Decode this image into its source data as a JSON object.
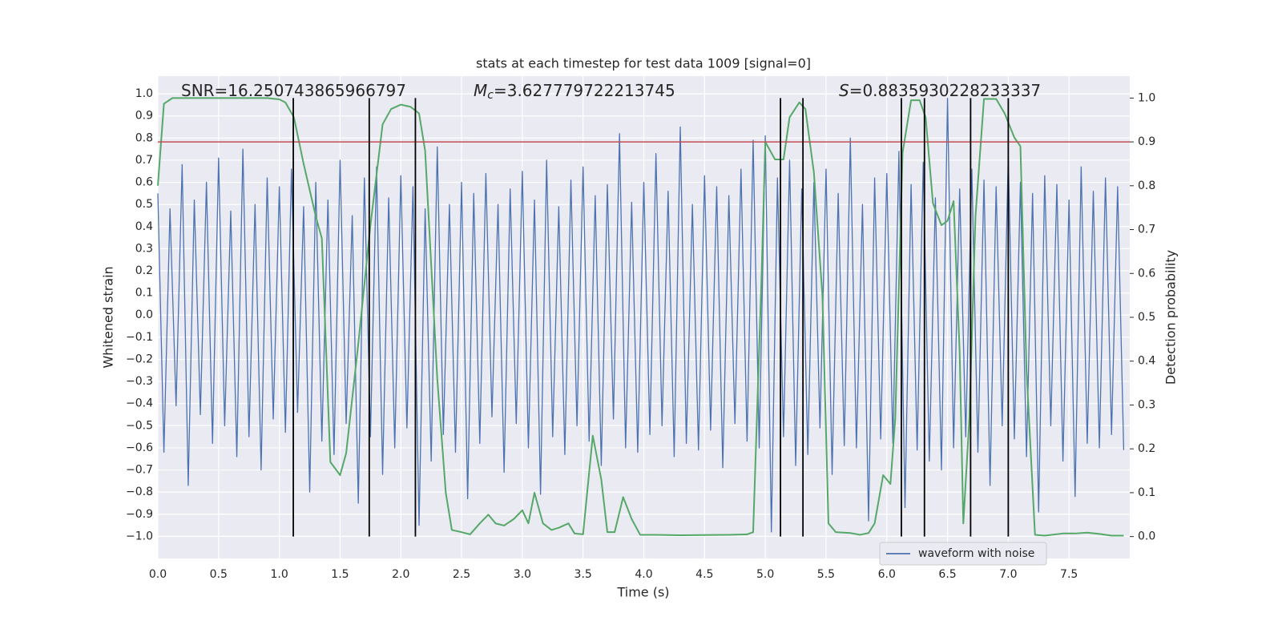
{
  "chart_data": {
    "type": "line",
    "title": "stats at each timestep for test data 1009 [signal=0]",
    "xlabel": "Time (s)",
    "ylabel": "Whitened strain",
    "y2label": "Detection probability",
    "xlim": [
      0,
      8
    ],
    "ylim": [
      -1.1,
      1.08
    ],
    "y2lim": [
      -0.05,
      1.05
    ],
    "xticks": [
      {
        "value": 0,
        "label": "0.0"
      },
      0.5,
      {
        "value": 1,
        "label": "1.0"
      },
      1.5,
      {
        "value": 2,
        "label": "2.0"
      },
      2.5,
      {
        "value": 3,
        "label": "3.0"
      },
      3.5,
      {
        "value": 4,
        "label": "4.0"
      },
      4.5,
      {
        "value": 5,
        "label": "5.0"
      },
      5.5,
      {
        "value": 6,
        "label": "6.0"
      },
      6.5,
      {
        "value": 7,
        "label": "7.0"
      },
      7.5
    ],
    "yticks": [
      {
        "value": -1,
        "label": "−1.0"
      },
      {
        "value": -0.9,
        "label": "−0.9"
      },
      {
        "value": -0.8,
        "label": "−0.8"
      },
      {
        "value": -0.7,
        "label": "−0.7"
      },
      {
        "value": -0.6,
        "label": "−0.6"
      },
      {
        "value": -0.5,
        "label": "−0.5"
      },
      {
        "value": -0.4,
        "label": "−0.4"
      },
      {
        "value": -0.3,
        "label": "−0.3"
      },
      {
        "value": -0.2,
        "label": "−0.2"
      },
      {
        "value": -0.1,
        "label": "−0.1"
      },
      {
        "value": 0,
        "label": "0.0"
      },
      0.1,
      0.2,
      0.3,
      0.4,
      0.5,
      0.6,
      0.7,
      0.8,
      0.9,
      {
        "value": 1,
        "label": "1.0"
      }
    ],
    "y2ticks": [
      {
        "value": 0,
        "label": "0.0"
      },
      0.1,
      0.2,
      0.3,
      0.4,
      0.5,
      0.6,
      0.7,
      0.8,
      0.9,
      {
        "value": 1,
        "label": "1.0"
      }
    ],
    "grid": true,
    "legend": "lower right",
    "annotations": [
      {
        "text": "SNR=16.250743865966797"
      },
      {
        "symbol": "M",
        "subscript": "c",
        "text": "=3.627779722213745"
      },
      {
        "symbol": "S",
        "text": "=0.8835930228233337"
      }
    ],
    "series": [
      {
        "name": "waveform with noise",
        "color": "#4c72b0",
        "x": [
          0,
          0.05,
          0.1,
          0.15,
          0.2,
          0.25,
          0.3,
          0.35,
          0.4,
          0.45,
          0.5,
          0.55,
          0.6,
          0.65,
          0.7,
          0.75,
          0.8,
          0.85,
          0.9,
          0.95,
          1,
          1.05,
          1.1,
          1.15,
          1.2,
          1.25,
          1.3,
          1.35,
          1.4,
          1.45,
          1.5,
          1.55,
          1.6,
          1.65,
          1.7,
          1.75,
          1.8,
          1.85,
          1.9,
          1.95,
          2,
          2.05,
          2.1,
          2.15,
          2.2,
          2.25,
          2.3,
          2.35,
          2.4,
          2.45,
          2.5,
          2.55,
          2.6,
          2.65,
          2.7,
          2.75,
          2.8,
          2.85,
          2.9,
          2.95,
          3,
          3.05,
          3.1,
          3.15,
          3.2,
          3.25,
          3.3,
          3.35,
          3.4,
          3.45,
          3.5,
          3.55,
          3.6,
          3.65,
          3.7,
          3.75,
          3.8,
          3.85,
          3.9,
          3.95,
          4,
          4.05,
          4.1,
          4.15,
          4.2,
          4.25,
          4.3,
          4.35,
          4.4,
          4.45,
          4.5,
          4.55,
          4.6,
          4.65,
          4.7,
          4.75,
          4.8,
          4.85,
          4.9,
          4.95,
          5,
          5.05,
          5.1,
          5.15,
          5.2,
          5.25,
          5.3,
          5.35,
          5.4,
          5.45,
          5.5,
          5.55,
          5.6,
          5.65,
          5.7,
          5.75,
          5.8,
          5.85,
          5.9,
          5.95,
          6,
          6.05,
          6.1,
          6.15,
          6.2,
          6.25,
          6.3,
          6.35,
          6.4,
          6.45,
          6.5,
          6.55,
          6.6,
          6.65,
          6.7,
          6.75,
          6.8,
          6.85,
          6.9,
          6.95,
          7,
          7.05,
          7.1,
          7.15,
          7.2,
          7.25,
          7.3,
          7.35,
          7.4,
          7.45,
          7.5,
          7.55,
          7.6,
          7.65,
          7.7,
          7.75,
          7.8,
          7.85,
          7.9,
          7.95
        ],
        "values": [
          0.55,
          -0.62,
          0.48,
          -0.41,
          0.68,
          -0.77,
          0.52,
          -0.45,
          0.6,
          -0.58,
          0.71,
          -0.5,
          0.47,
          -0.64,
          0.75,
          -0.55,
          0.5,
          -0.7,
          0.62,
          -0.47,
          0.58,
          -0.53,
          0.66,
          -0.44,
          0.49,
          -0.8,
          0.6,
          -0.57,
          0.52,
          -0.63,
          0.7,
          -0.49,
          0.45,
          -0.85,
          0.62,
          -0.55,
          0.67,
          -0.72,
          0.53,
          -0.6,
          0.63,
          -0.51,
          0.58,
          -0.95,
          0.48,
          -0.66,
          0.76,
          -0.54,
          0.5,
          -0.62,
          0.6,
          -0.83,
          0.55,
          -0.58,
          0.64,
          -0.46,
          0.5,
          -0.71,
          0.57,
          -0.49,
          0.65,
          -0.6,
          0.52,
          -0.81,
          0.7,
          -0.55,
          0.49,
          -0.63,
          0.61,
          -0.5,
          0.67,
          -0.57,
          0.54,
          -0.68,
          0.59,
          -0.47,
          0.82,
          -0.6,
          0.51,
          -0.62,
          0.6,
          -0.54,
          0.73,
          -0.5,
          0.56,
          -0.64,
          0.85,
          -0.58,
          0.5,
          -0.61,
          0.63,
          -0.52,
          0.58,
          -0.69,
          0.54,
          -0.49,
          0.66,
          -0.57,
          0.79,
          -0.6,
          0.81,
          -0.98,
          0.62,
          -0.55,
          0.7,
          -0.68,
          0.57,
          -0.63,
          0.6,
          -0.51,
          0.66,
          -0.72,
          0.55,
          -0.59,
          0.8,
          -0.6,
          0.5,
          -0.93,
          0.62,
          -0.56,
          0.64,
          -0.58,
          0.74,
          -0.87,
          0.59,
          -0.61,
          0.69,
          -0.66,
          0.53,
          -0.7,
          0.98,
          -0.6,
          0.57,
          -0.55,
          0.66,
          -0.62,
          0.61,
          -0.77,
          0.58,
          -0.5,
          0.72,
          -0.56,
          0.6,
          -0.64,
          0.55,
          -0.89,
          0.63,
          -0.5,
          0.59,
          -0.66,
          0.52,
          -0.82,
          0.67,
          -0.58,
          0.56,
          -0.6,
          0.62,
          -0.54,
          0.58,
          -0.61
        ]
      },
      {
        "color": "#55a868",
        "axis": "y2",
        "x": [
          0,
          0.05,
          0.12,
          0.2,
          0.5,
          0.9,
          1.0,
          1.05,
          1.12,
          1.2,
          1.3,
          1.35,
          1.42,
          1.5,
          1.55,
          1.65,
          1.75,
          1.85,
          1.92,
          2.0,
          2.08,
          2.15,
          2.2,
          2.3,
          2.37,
          2.42,
          2.5,
          2.57,
          2.65,
          2.72,
          2.78,
          2.85,
          2.93,
          3.0,
          3.05,
          3.1,
          3.17,
          3.24,
          3.3,
          3.38,
          3.43,
          3.5,
          3.58,
          3.65,
          3.7,
          3.76,
          3.83,
          3.9,
          3.97,
          4.1,
          4.3,
          4.7,
          4.85,
          4.9,
          4.97,
          5.0,
          5.08,
          5.15,
          5.2,
          5.28,
          5.33,
          5.4,
          5.47,
          5.52,
          5.58,
          5.7,
          5.78,
          5.85,
          5.9,
          5.97,
          6.03,
          6.07,
          6.13,
          6.2,
          6.27,
          6.32,
          6.38,
          6.45,
          6.5,
          6.55,
          6.6,
          6.63,
          6.68,
          6.73,
          6.8,
          6.9,
          6.97,
          7.05,
          7.1,
          7.15,
          7.22,
          7.3,
          7.45,
          7.55,
          7.65,
          7.75,
          7.85,
          7.95
        ],
        "values": [
          0.8,
          0.987,
          1.0,
          1.0,
          1.0,
          1.0,
          0.997,
          0.99,
          0.956,
          0.85,
          0.73,
          0.68,
          0.17,
          0.14,
          0.19,
          0.44,
          0.71,
          0.94,
          0.975,
          0.985,
          0.98,
          0.965,
          0.88,
          0.36,
          0.1,
          0.015,
          0.01,
          0.005,
          0.03,
          0.05,
          0.03,
          0.025,
          0.04,
          0.06,
          0.03,
          0.1,
          0.03,
          0.015,
          0.02,
          0.03,
          0.007,
          0.005,
          0.23,
          0.13,
          0.01,
          0.01,
          0.09,
          0.04,
          0.004,
          0.004,
          0.003,
          0.004,
          0.005,
          0.01,
          0.6,
          0.9,
          0.86,
          0.86,
          0.956,
          0.99,
          0.975,
          0.83,
          0.55,
          0.03,
          0.01,
          0.008,
          0.004,
          0.008,
          0.03,
          0.14,
          0.12,
          0.27,
          0.875,
          0.995,
          0.995,
          0.956,
          0.76,
          0.71,
          0.72,
          0.765,
          0.42,
          0.03,
          0.27,
          0.73,
          0.998,
          0.998,
          0.965,
          0.91,
          0.89,
          0.38,
          0.004,
          0.002,
          0.007,
          0.007,
          0.009,
          0.006,
          0.002,
          0.002
        ]
      }
    ],
    "hlines": [
      {
        "value": 0.9,
        "axis": "y2",
        "color": "#c44e52"
      }
    ],
    "vlines": {
      "values": [
        1.115,
        1.74,
        2.12,
        5.125,
        5.31,
        6.12,
        6.31,
        6.69,
        7.0
      ],
      "y2range": [
        0,
        1
      ],
      "color": "#000000"
    }
  }
}
